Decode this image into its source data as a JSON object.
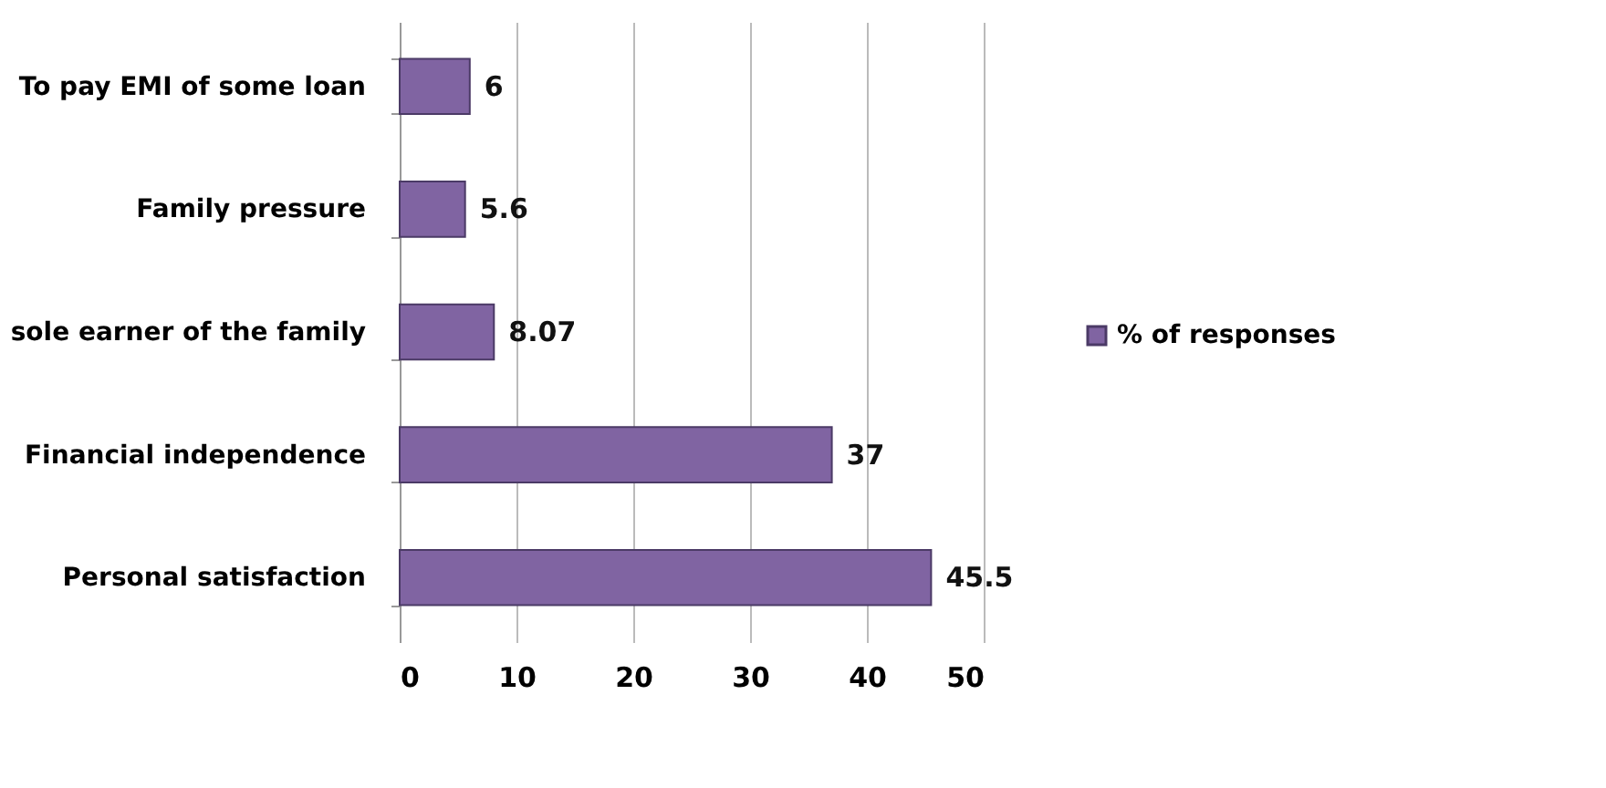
{
  "chart_data": {
    "type": "bar",
    "orientation": "horizontal",
    "categories": [
      "To pay EMI of some loan",
      "Family pressure",
      "sole earner of the family",
      "Financial independence",
      "Personal satisfaction"
    ],
    "series": [
      {
        "name": "% of responses",
        "color": "#8064a2",
        "values": [
          6,
          5.6,
          8.07,
          37,
          45.5
        ]
      }
    ],
    "xlim": [
      0,
      50
    ],
    "xticks": [
      0,
      10,
      20,
      30,
      40,
      50
    ],
    "grid": "x",
    "legend": "right",
    "data_labels": true
  }
}
